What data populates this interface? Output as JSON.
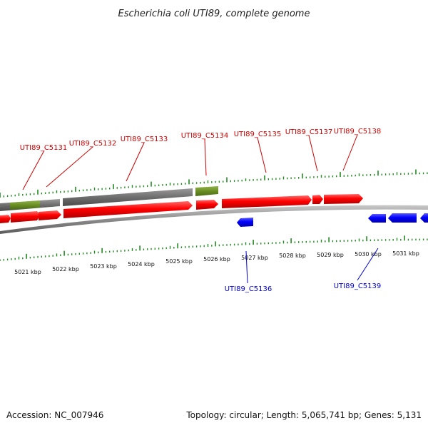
{
  "title": "Escherichia coli UTI89, complete genome",
  "footer": {
    "accession": "Accession: NC_007946",
    "summary": "Topology: circular; Length: 5,065,741 bp; Genes: 5,131"
  },
  "colors": {
    "forward_gene": "#ff0000",
    "reverse_gene": "#0000ff",
    "gc_gray": "#6e6e6e",
    "gc_green": "#6b8e23",
    "tick_green": "#228b22",
    "backbone": "#8c8c8c",
    "forward_label": "#cc0000",
    "reverse_label": "#0000cc"
  },
  "axis": {
    "unit": "kbp",
    "labels": [
      "5021 kbp",
      "5022 kbp",
      "5023 kbp",
      "5024 kbp",
      "5025 kbp",
      "5026 kbp",
      "5027 kbp",
      "5028 kbp",
      "5029 kbp",
      "5030 kbp",
      "5031 kbp"
    ]
  },
  "genes_forward": [
    {
      "name": "UTI89_C5131"
    },
    {
      "name": "UTI89_C5132"
    },
    {
      "name": "UTI89_C5133"
    },
    {
      "name": "UTI89_C5134"
    },
    {
      "name": "UTI89_C5135"
    },
    {
      "name": "UTI89_C5137"
    },
    {
      "name": "UTI89_C5138"
    }
  ],
  "genes_reverse": [
    {
      "name": "UTI89_C5136"
    },
    {
      "name": "UTI89_C5139"
    }
  ]
}
